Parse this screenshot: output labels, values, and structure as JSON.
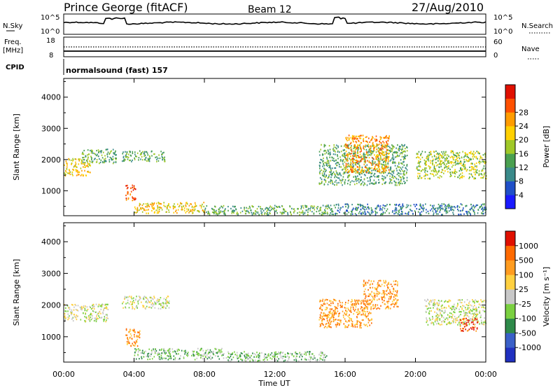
{
  "header": {
    "station": "Prince George (fitACF)",
    "beam": "Beam 12",
    "date": "27/Aug/2010"
  },
  "status": {
    "nsky_label": "N.Sky",
    "nsearch_label": "N.Search",
    "nsky_ticks": [
      "10^5",
      "10^0"
    ],
    "nsearch_ticks": [
      "10^5",
      "10^0"
    ],
    "freq_label_1": "Freq.",
    "freq_label_2": "[MHz]",
    "freq_ticks": [
      "18",
      "8"
    ],
    "nave_label": "Nave",
    "nave_ticks": [
      "60",
      "0"
    ],
    "cpid_label": "CPID",
    "cpid_value": "normalsound (fast) 157"
  },
  "chart_data": [
    {
      "type": "heatmap",
      "title": "",
      "ylabel": "Slant Range [km]",
      "xlabel": "",
      "y_ticks": [
        1000,
        2000,
        3000,
        4000
      ],
      "ylim": [
        200,
        4600
      ],
      "x_ticks": [
        "00:00",
        "04:00",
        "08:00",
        "12:00",
        "16:00",
        "20:00",
        "00:00"
      ],
      "colorbar": {
        "label": "Power [dB]",
        "ticks": [
          "4",
          "8",
          "12",
          "16",
          "20",
          "24",
          "28"
        ],
        "colors": [
          "#1a1aff",
          "#2050c8",
          "#3a8a8a",
          "#4aa050",
          "#a0c828",
          "#ffd000",
          "#ff9c00",
          "#ff5000",
          "#e01000"
        ]
      },
      "echo_regions_km": [
        {
          "t0": 0.0,
          "t1": 1.5,
          "r0": 1500,
          "r1": 2050,
          "level": 5
        },
        {
          "t0": 1.0,
          "t1": 3.0,
          "r0": 1900,
          "r1": 2350,
          "level": 3
        },
        {
          "t0": 3.3,
          "t1": 5.8,
          "r0": 1950,
          "r1": 2300,
          "level": 3
        },
        {
          "t0": 3.5,
          "t1": 4.1,
          "r0": 700,
          "r1": 1200,
          "level": 7
        },
        {
          "t0": 4.0,
          "t1": 8.0,
          "r0": 300,
          "r1": 650,
          "level": 5
        },
        {
          "t0": 8.0,
          "t1": 15.0,
          "r0": 250,
          "r1": 550,
          "level": 3
        },
        {
          "t0": 14.5,
          "t1": 19.5,
          "r0": 1200,
          "r1": 2500,
          "level": 3
        },
        {
          "t0": 16.0,
          "t1": 18.5,
          "r0": 1600,
          "r1": 2800,
          "level": 6
        },
        {
          "t0": 20.0,
          "t1": 24.0,
          "r0": 1400,
          "r1": 2300,
          "level": 4
        },
        {
          "t0": 15.0,
          "t1": 24.0,
          "r0": 250,
          "r1": 600,
          "level": 2
        }
      ]
    },
    {
      "type": "heatmap",
      "title": "",
      "ylabel": "Slant Range [km]",
      "xlabel": "Time UT",
      "y_ticks": [
        1000,
        2000,
        3000,
        4000
      ],
      "ylim": [
        200,
        4600
      ],
      "x_ticks": [
        "00:00",
        "04:00",
        "08:00",
        "12:00",
        "16:00",
        "20:00",
        "00:00"
      ],
      "colorbar": {
        "label": "Velocity [m s⁻¹]",
        "ticks": [
          "1000",
          "500",
          "100",
          "25",
          "-25",
          "-100",
          "-500",
          "-1000"
        ],
        "colors": [
          "#2030c0",
          "#3a60c8",
          "#2e8a4a",
          "#7ad040",
          "#c8c8c8",
          "#ffd040",
          "#ff9c20",
          "#ff6a00",
          "#e01000"
        ]
      },
      "echo_regions_km": [
        {
          "t0": 0.0,
          "t1": 2.5,
          "r0": 1500,
          "r1": 2050,
          "level": 4
        },
        {
          "t0": 3.3,
          "t1": 6.0,
          "r0": 1900,
          "r1": 2300,
          "level": 4
        },
        {
          "t0": 3.5,
          "t1": 4.3,
          "r0": 700,
          "r1": 1300,
          "level": 6
        },
        {
          "t0": 4.0,
          "t1": 9.0,
          "r0": 300,
          "r1": 650,
          "level": 3
        },
        {
          "t0": 9.0,
          "t1": 15.0,
          "r0": 250,
          "r1": 550,
          "level": 3
        },
        {
          "t0": 14.5,
          "t1": 17.5,
          "r0": 1300,
          "r1": 2200,
          "level": 6
        },
        {
          "t0": 17.0,
          "t1": 19.0,
          "r0": 1900,
          "r1": 2800,
          "level": 6
        },
        {
          "t0": 20.5,
          "t1": 24.0,
          "r0": 1400,
          "r1": 2200,
          "level": 4
        },
        {
          "t0": 22.5,
          "t1": 23.5,
          "r0": 1200,
          "r1": 1600,
          "level": 7
        }
      ]
    }
  ]
}
